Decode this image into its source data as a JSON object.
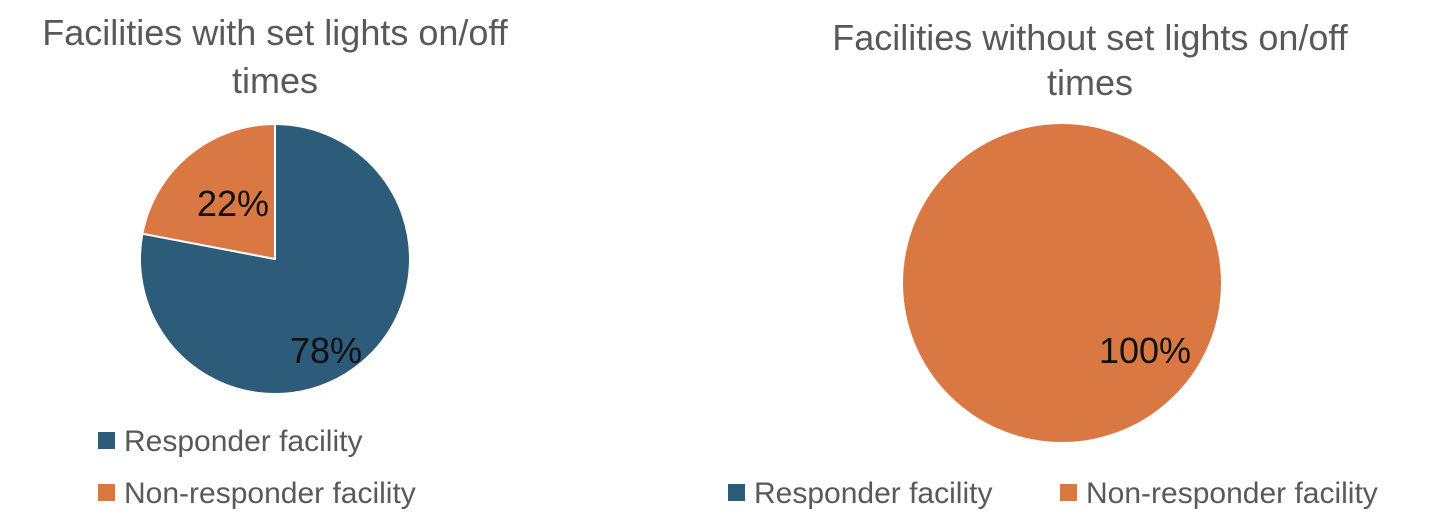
{
  "chart_data": [
    {
      "type": "pie",
      "title_line1": "Facilities with set lights on/off",
      "title_line2": "times",
      "slices": [
        {
          "name": "Responder facility",
          "value": 78,
          "label": "78%",
          "color": "#2d5b7a"
        },
        {
          "name": "Non-responder facility",
          "value": 22,
          "label": "22%",
          "color": "#d97843"
        }
      ],
      "legend": [
        "Responder facility",
        "Non-responder facility"
      ],
      "legend_placement": "bottom"
    },
    {
      "type": "pie",
      "title_line1": "Facilities without set lights on/off",
      "title_line2": "times",
      "slices": [
        {
          "name": "Responder facility",
          "value": 0,
          "label": "",
          "color": "#2d5b7a"
        },
        {
          "name": "Non-responder facility",
          "value": 100,
          "label": "100%",
          "color": "#d97843"
        }
      ],
      "legend": [
        "Responder facility",
        "Non-responder facility"
      ],
      "legend_placement": "bottom"
    }
  ]
}
